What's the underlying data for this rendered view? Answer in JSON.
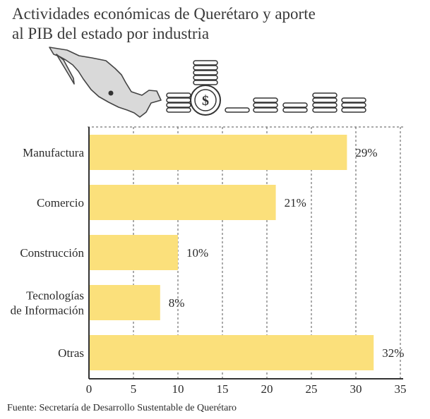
{
  "title_lines": [
    "Actividades económicas de Querétaro y aporte",
    "al PIB del estado por industria"
  ],
  "source": "Fuente: Secretaría de Desarrollo Sustentable de Querétaro",
  "icons": {
    "map": "mexico-map-icon",
    "coin": "dollar-coin-icon",
    "stacks": "coin-stack-icon"
  },
  "colors": {
    "bar": "#fbe07b",
    "map": "#d9d9d9",
    "axis": "#333333",
    "grid": "#555555"
  },
  "chart_data": {
    "type": "bar",
    "orientation": "horizontal",
    "categories": [
      "Manufactura",
      "Comercio",
      "Construcción",
      "Tecnologías\nde Información",
      "Otras"
    ],
    "values": [
      29,
      21,
      10,
      8,
      32
    ],
    "value_labels": [
      "29%",
      "21%",
      "10%",
      "8%",
      "32%"
    ],
    "xlim": [
      0,
      35
    ],
    "xticks": [
      0,
      5,
      10,
      15,
      20,
      25,
      30,
      35
    ],
    "grid": "vertical-dashed",
    "legend": "none"
  }
}
